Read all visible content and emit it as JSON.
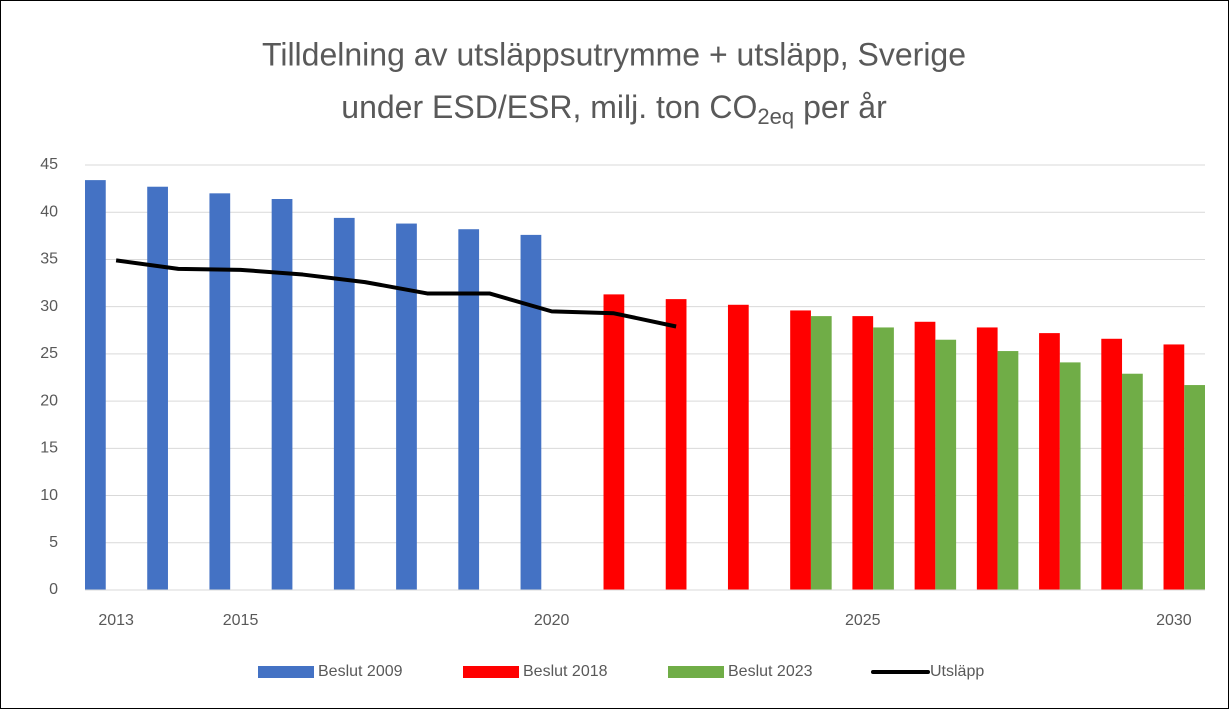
{
  "chart_data": {
    "type": "bar",
    "title": [
      "Tilldelning av utsläppsutrymme + utsläpp, Sverige",
      "under ESD/ESR, milj. ton CO",
      "2eq",
      "per år"
    ],
    "categories": [
      "2013",
      null,
      "2015",
      null,
      null,
      null,
      null,
      "2020",
      null,
      null,
      null,
      null,
      "2025",
      null,
      null,
      null,
      null,
      "2030"
    ],
    "series": [
      {
        "name": "Beslut 2009",
        "type": "bar",
        "color": "#4472c4",
        "values": [
          43.4,
          42.7,
          42.0,
          41.4,
          39.4,
          38.8,
          38.2,
          37.6,
          null,
          null,
          null,
          null,
          null,
          null,
          null,
          null,
          null,
          null
        ]
      },
      {
        "name": "Beslut 2018",
        "type": "bar",
        "color": "#ff0000",
        "values": [
          null,
          null,
          null,
          null,
          null,
          null,
          null,
          null,
          31.3,
          30.8,
          30.2,
          29.6,
          29.0,
          28.4,
          27.8,
          27.2,
          26.6,
          26.0
        ]
      },
      {
        "name": "Beslut 2023",
        "type": "bar",
        "color": "#70ad47",
        "values": [
          null,
          null,
          null,
          null,
          null,
          null,
          null,
          null,
          null,
          null,
          null,
          29.0,
          27.8,
          26.5,
          25.3,
          24.1,
          22.9,
          21.7
        ]
      },
      {
        "name": "Utsläpp",
        "type": "line",
        "color": "#000000",
        "values": [
          34.9,
          34.0,
          33.9,
          33.4,
          32.6,
          31.4,
          31.4,
          29.5,
          29.3,
          27.9,
          null,
          null,
          null,
          null,
          null,
          null,
          null,
          null
        ]
      }
    ],
    "ylim": [
      0,
      45
    ],
    "yticks": [
      0,
      5,
      10,
      15,
      20,
      25,
      30,
      35,
      40,
      45
    ],
    "grid": true,
    "legend": "bottom"
  }
}
